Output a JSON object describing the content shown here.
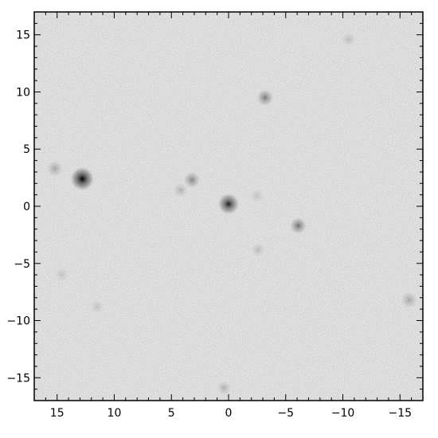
{
  "chart_data": {
    "type": "image",
    "title": "",
    "xlabel": "",
    "ylabel": "",
    "xlim": [
      17,
      -17
    ],
    "ylim": [
      -17,
      17
    ],
    "x_ticks": [
      15,
      10,
      5,
      0,
      -5,
      -10,
      -15
    ],
    "y_ticks": [
      15,
      10,
      5,
      0,
      -5,
      -10,
      -15
    ],
    "x_tick_labels": [
      "15",
      "10",
      "5",
      "0",
      "−5",
      "−10",
      "−15"
    ],
    "y_tick_labels": [
      "15",
      "10",
      "5",
      "0",
      "−5",
      "−10",
      "−15"
    ],
    "grid": false,
    "colormap": "grayscale-inverted",
    "background_color": "#f7f7f7",
    "sources": [
      {
        "x": 12.8,
        "y": 2.4,
        "brightness": 1.0,
        "radius": 1.0
      },
      {
        "x": 0.0,
        "y": 0.2,
        "brightness": 0.85,
        "radius": 0.9
      },
      {
        "x": -3.2,
        "y": 9.5,
        "brightness": 0.45,
        "radius": 0.7
      },
      {
        "x": -6.1,
        "y": -1.7,
        "brightness": 0.5,
        "radius": 0.7
      },
      {
        "x": 3.2,
        "y": 2.3,
        "brightness": 0.4,
        "radius": 0.7
      },
      {
        "x": 4.2,
        "y": 1.4,
        "brightness": 0.2,
        "radius": 0.6
      },
      {
        "x": 15.2,
        "y": 3.3,
        "brightness": 0.25,
        "radius": 0.7
      },
      {
        "x": -15.8,
        "y": -8.2,
        "brightness": 0.25,
        "radius": 0.7
      },
      {
        "x": -2.6,
        "y": -3.8,
        "brightness": 0.15,
        "radius": 0.6
      },
      {
        "x": -10.5,
        "y": 14.6,
        "brightness": 0.15,
        "radius": 0.6
      },
      {
        "x": 0.4,
        "y": -15.9,
        "brightness": 0.2,
        "radius": 0.6
      },
      {
        "x": 14.6,
        "y": -6.0,
        "brightness": 0.12,
        "radius": 0.6
      },
      {
        "x": 11.5,
        "y": -8.8,
        "brightness": 0.12,
        "radius": 0.6
      },
      {
        "x": -2.5,
        "y": 0.9,
        "brightness": 0.12,
        "radius": 0.6
      }
    ]
  }
}
